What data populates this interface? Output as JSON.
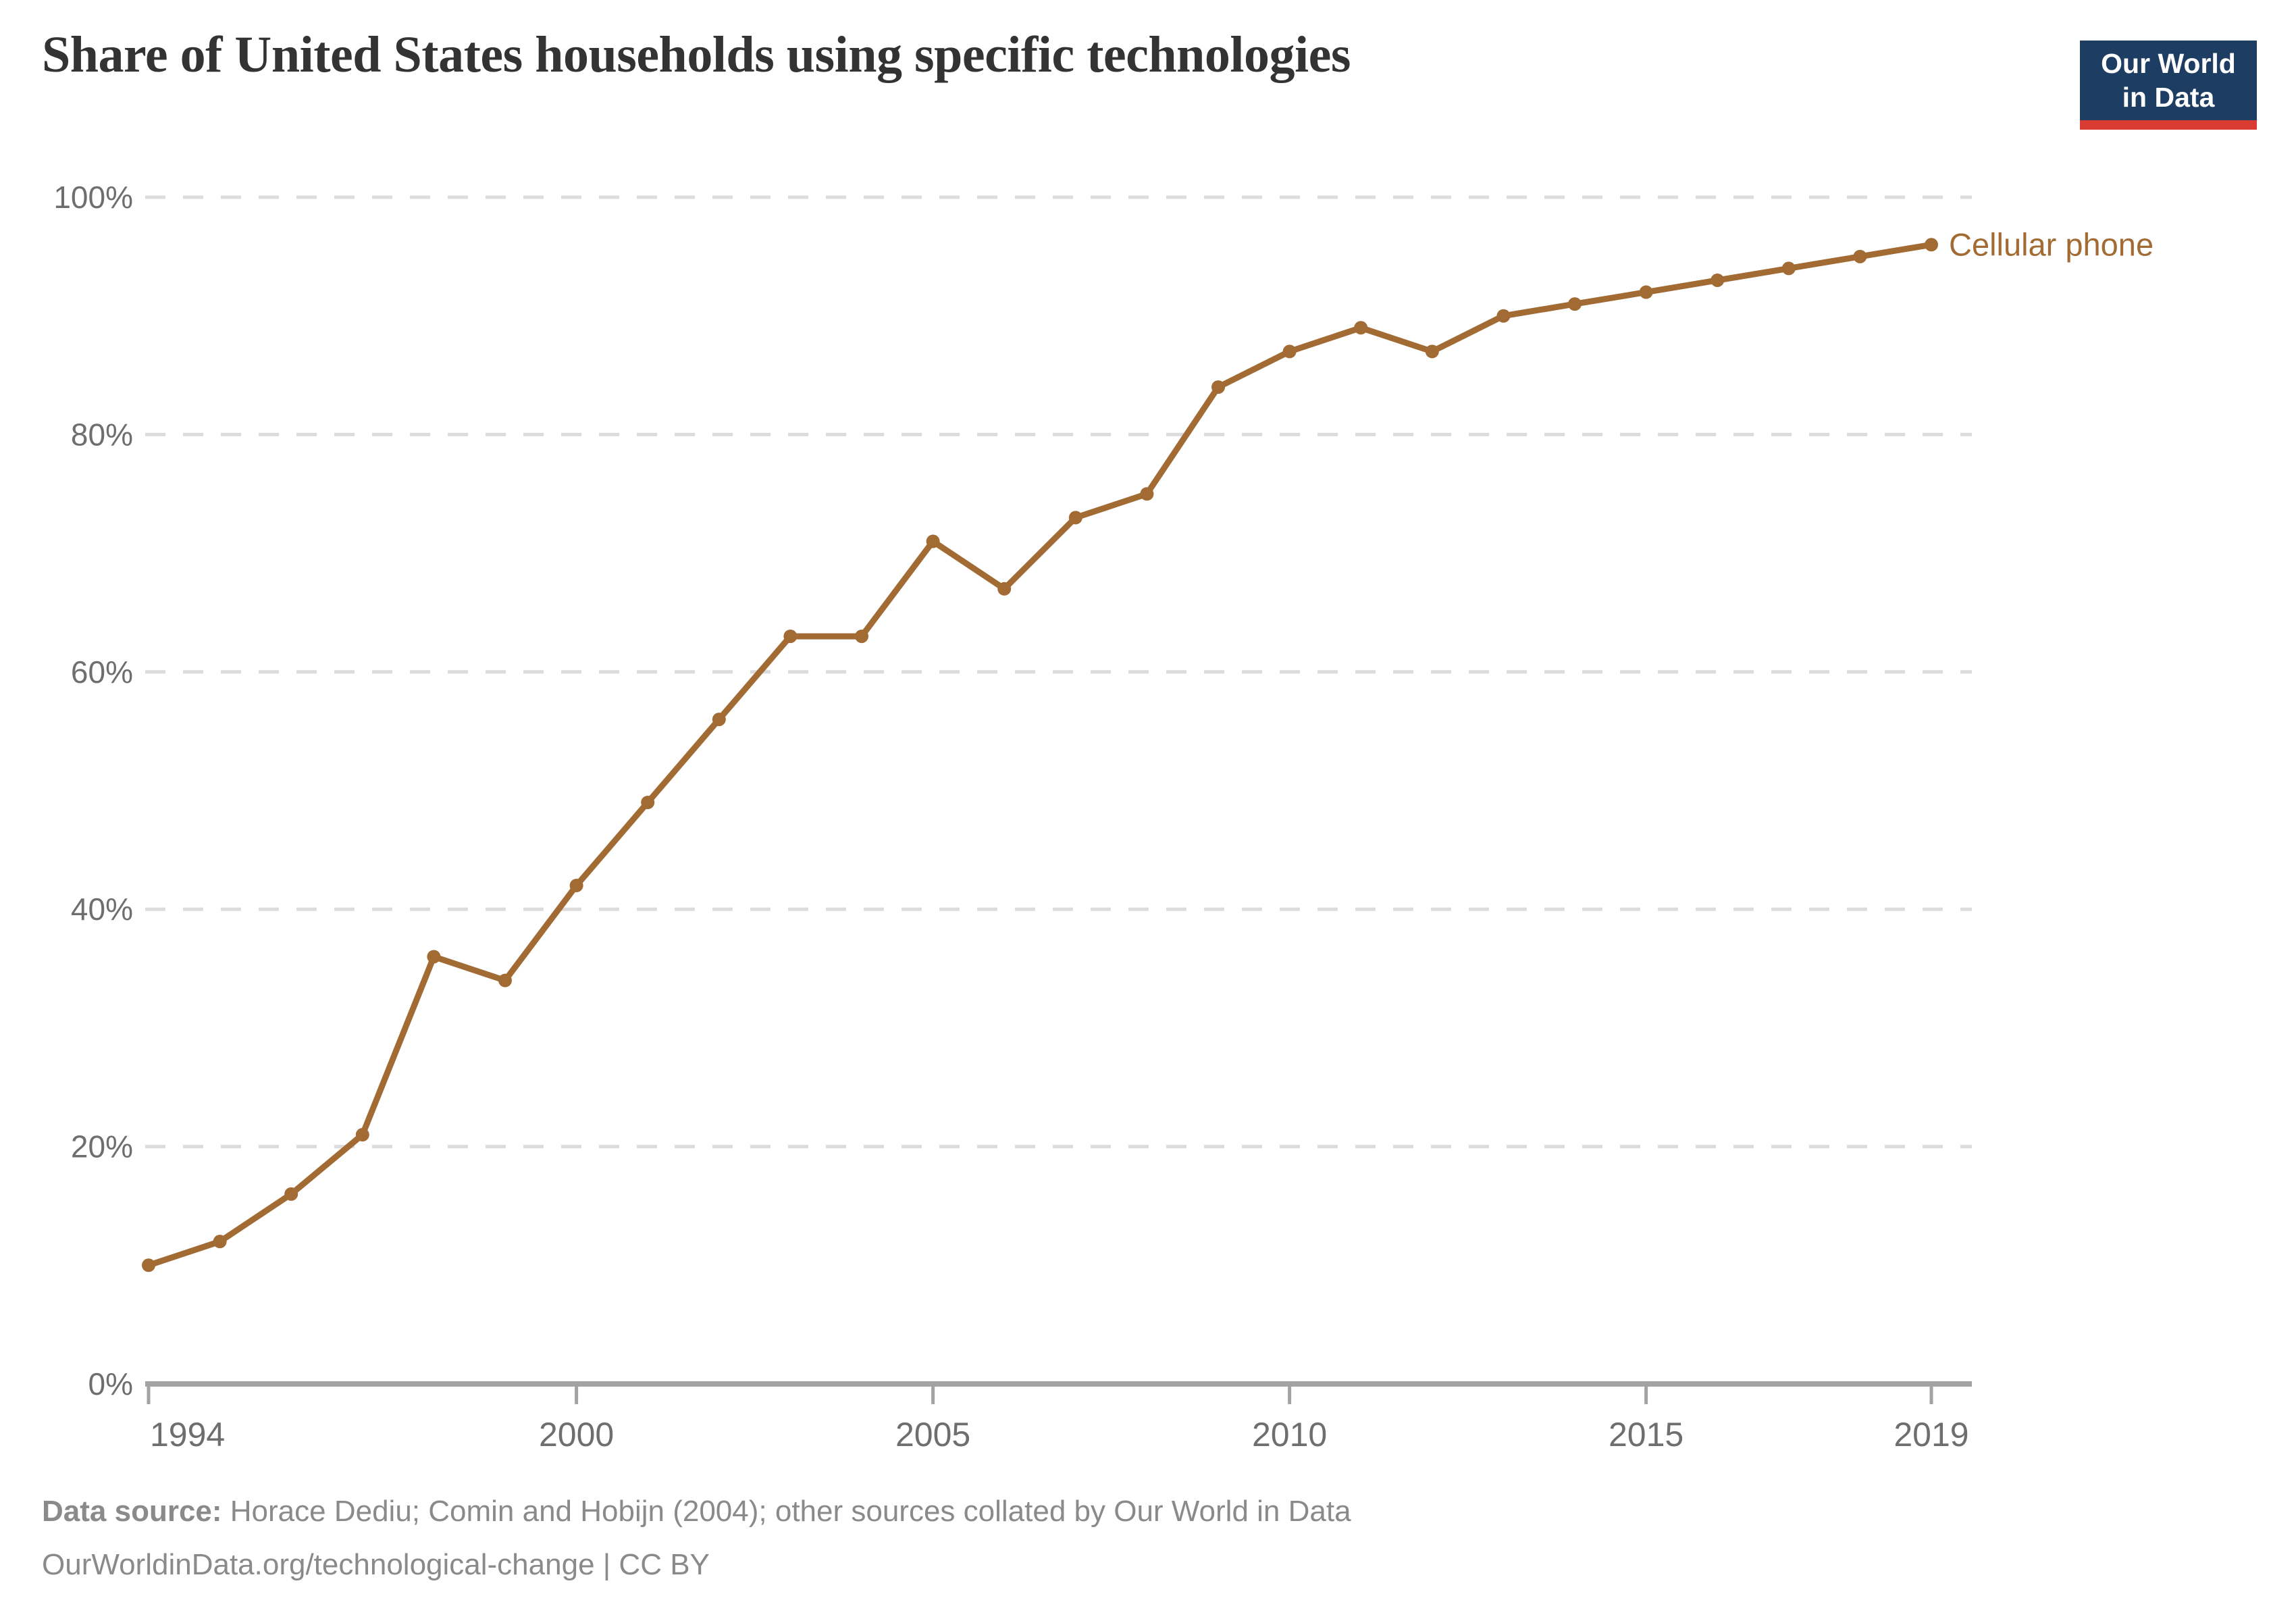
{
  "header": {
    "title": "Share of United States households using specific technologies",
    "logo": {
      "line1": "Our World",
      "line2": "in Data"
    }
  },
  "chart_data": {
    "type": "line",
    "title": "Share of United States households using specific technologies",
    "xlabel": "",
    "ylabel": "",
    "xlim": [
      1994,
      2019
    ],
    "ylim": [
      0,
      100
    ],
    "grid": "horizontal-dashed",
    "legend_position": "end-of-line-label",
    "x_ticks": [
      1994,
      2000,
      2005,
      2010,
      2015,
      2019
    ],
    "y_ticks": [
      0,
      20,
      40,
      60,
      80,
      100
    ],
    "y_tick_suffix": "%",
    "series": [
      {
        "name": "Cellular phone",
        "color": "#a16b33",
        "x": [
          1994,
          1995,
          1996,
          1997,
          1998,
          1999,
          2000,
          2001,
          2002,
          2003,
          2004,
          2005,
          2006,
          2007,
          2008,
          2009,
          2010,
          2011,
          2012,
          2013,
          2014,
          2015,
          2016,
          2017,
          2018,
          2019
        ],
        "values": [
          10,
          12,
          16,
          21,
          36,
          34,
          42,
          49,
          56,
          63,
          63,
          71,
          67,
          73,
          75,
          84,
          87,
          89,
          87,
          90,
          91,
          92,
          93,
          94,
          95,
          96
        ]
      }
    ]
  },
  "footer": {
    "source_label": "Data source:",
    "source_text": " Horace Dediu; Comin and Hobijn (2004); other sources collated by Our World in Data",
    "citation": "OurWorldinData.org/technological-change | CC BY"
  },
  "colors": {
    "series_brown": "#a16b33",
    "title_text": "#333333",
    "axis_text": "#6e6e6e",
    "gridline": "#dcdcdc",
    "axis_line": "#a3a3a3",
    "footer_text": "#8a8a8a",
    "logo_navy": "#1d3d63",
    "logo_red": "#d73b31"
  }
}
